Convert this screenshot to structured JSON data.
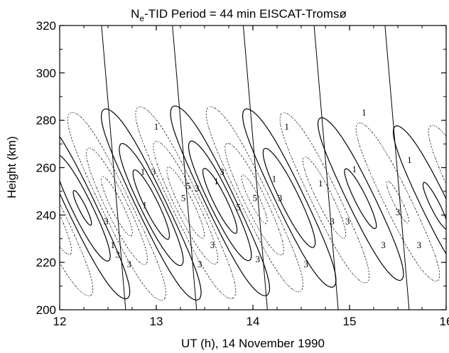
{
  "chart_data": {
    "type": "contour",
    "title": {
      "prefix": "N",
      "subscript": "e",
      "rest": "-TID  Period = 44 min  EISCAT-Tromsø"
    },
    "xlabel": "UT (h), 14 November 1990",
    "ylabel": "Height (km)",
    "xlim": [
      12,
      16
    ],
    "ylim": [
      200,
      320
    ],
    "x_ticks": [
      12,
      13,
      14,
      15,
      16
    ],
    "y_ticks": [
      200,
      220,
      240,
      260,
      280,
      300,
      320
    ],
    "x_tick_labels": [
      "12",
      "13",
      "14",
      "15",
      "16"
    ],
    "y_tick_labels": [
      "200",
      "220",
      "240",
      "260",
      "280",
      "300",
      "320"
    ],
    "period_min": 44,
    "line_styles": {
      "positive": "solid",
      "negative": "dotted"
    },
    "contour_labels": [
      {
        "text": "1",
        "x": 12.55,
        "y": 226
      },
      {
        "text": "3",
        "x": 12.48,
        "y": 236
      },
      {
        "text": "3",
        "x": 12.6,
        "y": 222
      },
      {
        "text": "3",
        "x": 12.72,
        "y": 218
      },
      {
        "text": "1",
        "x": 12.88,
        "y": 243
      },
      {
        "text": "1",
        "x": 12.86,
        "y": 257
      },
      {
        "text": "3",
        "x": 12.97,
        "y": 257
      },
      {
        "text": "1",
        "x": 13.0,
        "y": 276
      },
      {
        "text": "5",
        "x": 13.28,
        "y": 246
      },
      {
        "text": "5",
        "x": 13.33,
        "y": 251
      },
      {
        "text": "3",
        "x": 13.42,
        "y": 250
      },
      {
        "text": "3",
        "x": 13.45,
        "y": 218
      },
      {
        "text": "3",
        "x": 13.58,
        "y": 226
      },
      {
        "text": "1",
        "x": 13.62,
        "y": 253
      },
      {
        "text": "3",
        "x": 13.68,
        "y": 257
      },
      {
        "text": "5",
        "x": 13.85,
        "y": 242
      },
      {
        "text": "5",
        "x": 14.02,
        "y": 246
      },
      {
        "text": "3",
        "x": 14.05,
        "y": 220
      },
      {
        "text": "1",
        "x": 14.22,
        "y": 254
      },
      {
        "text": "3",
        "x": 14.28,
        "y": 246
      },
      {
        "text": "1",
        "x": 14.35,
        "y": 276
      },
      {
        "text": "3",
        "x": 14.82,
        "y": 236
      },
      {
        "text": "3",
        "x": 14.55,
        "y": 218
      },
      {
        "text": "1",
        "x": 14.7,
        "y": 252
      },
      {
        "text": "3",
        "x": 14.98,
        "y": 236
      },
      {
        "text": "1",
        "x": 15.05,
        "y": 258
      },
      {
        "text": "1",
        "x": 15.15,
        "y": 282
      },
      {
        "text": "3",
        "x": 15.35,
        "y": 226
      },
      {
        "text": "3",
        "x": 15.5,
        "y": 240
      },
      {
        "text": "1",
        "x": 15.62,
        "y": 262
      },
      {
        "text": "3",
        "x": 15.72,
        "y": 226
      }
    ]
  }
}
